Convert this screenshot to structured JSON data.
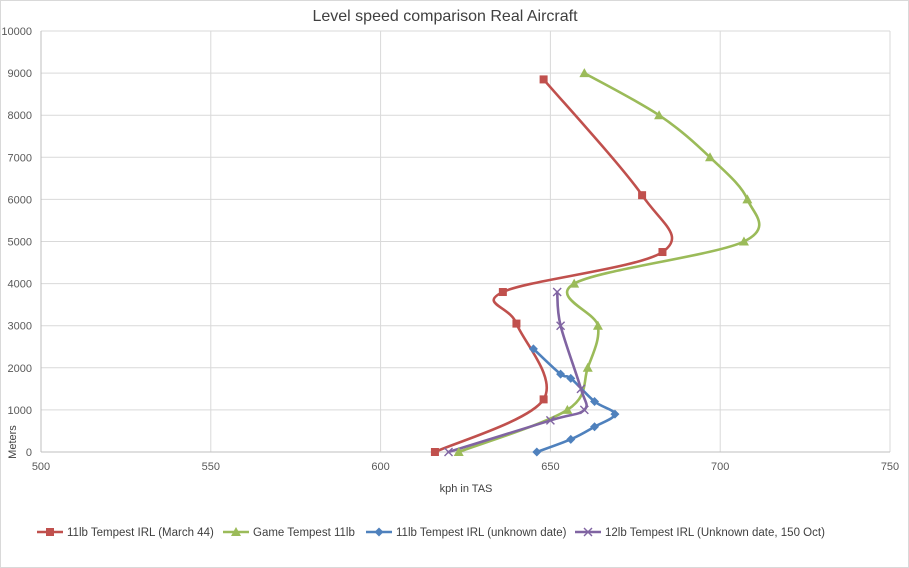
{
  "chart_data": {
    "type": "line",
    "title": "Level speed comparison Real Aircraft",
    "xlabel": "kph in TAS",
    "ylabel": "Meters",
    "xlim": [
      500,
      750
    ],
    "ylim": [
      0,
      10000
    ],
    "xticks": [
      500,
      550,
      600,
      650,
      700,
      750
    ],
    "yticks": [
      0,
      1000,
      2000,
      3000,
      4000,
      5000,
      6000,
      7000,
      8000,
      9000,
      10000
    ],
    "grid": true,
    "legend_position": "bottom",
    "series": [
      {
        "name": "11lb Tempest IRL (March 44)",
        "color": "#c0504d",
        "marker": "square",
        "points": [
          [
            616,
            0
          ],
          [
            648,
            1250
          ],
          [
            640,
            3050
          ],
          [
            636,
            3800
          ],
          [
            683,
            4750
          ],
          [
            677,
            6100
          ],
          [
            648,
            8850
          ]
        ]
      },
      {
        "name": "Game Tempest 11lb",
        "color": "#9bbb59",
        "marker": "triangle",
        "points": [
          [
            623,
            0
          ],
          [
            655,
            1000
          ],
          [
            661,
            2000
          ],
          [
            664,
            3000
          ],
          [
            657,
            4000
          ],
          [
            707,
            5000
          ],
          [
            708,
            6000
          ],
          [
            697,
            7000
          ],
          [
            682,
            8000
          ],
          [
            660,
            9000
          ]
        ]
      },
      {
        "name": "11lb Tempest IRL (unknown date)",
        "color": "#4f81bd",
        "marker": "diamond",
        "points": [
          [
            646,
            0
          ],
          [
            656,
            300
          ],
          [
            663,
            600
          ],
          [
            669,
            900
          ],
          [
            663,
            1200
          ],
          [
            656,
            1750
          ],
          [
            653,
            1850
          ],
          [
            645,
            2450
          ]
        ]
      },
      {
        "name": "12lb Tempest IRL (Unknown date, 150 Oct)",
        "color": "#8064a2",
        "marker": "x",
        "points": [
          [
            620,
            0
          ],
          [
            650,
            750
          ],
          [
            660,
            1000
          ],
          [
            659,
            1500
          ],
          [
            653,
            3000
          ],
          [
            652,
            3800
          ]
        ]
      }
    ]
  }
}
